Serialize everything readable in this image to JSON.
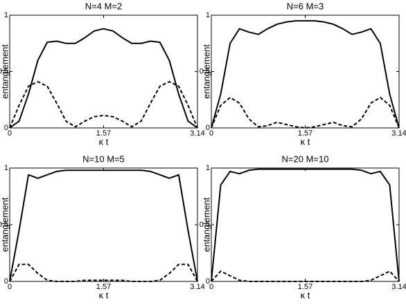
{
  "chart_data": [
    {
      "type": "line",
      "title": "N=4  M=2",
      "xlabel": "κ t",
      "ylabel": "entanglement",
      "x": [
        0,
        0.157,
        0.314,
        0.471,
        0.628,
        0.785,
        0.942,
        1.099,
        1.256,
        1.413,
        1.57,
        1.727,
        1.884,
        2.041,
        2.198,
        2.355,
        2.512,
        2.669,
        2.826,
        2.983,
        3.14
      ],
      "series": [
        {
          "color": "#000000",
          "dash": false,
          "values": [
            0,
            0.06,
            0.3,
            0.6,
            0.76,
            0.77,
            0.75,
            0.75,
            0.8,
            0.86,
            0.88,
            0.86,
            0.8,
            0.75,
            0.75,
            0.77,
            0.76,
            0.6,
            0.3,
            0.06,
            0
          ]
        },
        {
          "color": "#000000",
          "dash": true,
          "values": [
            0,
            0.2,
            0.37,
            0.41,
            0.37,
            0.22,
            0.06,
            0.01,
            0.06,
            0.1,
            0.11,
            0.1,
            0.06,
            0.01,
            0.06,
            0.22,
            0.37,
            0.41,
            0.37,
            0.2,
            0
          ]
        }
      ],
      "xlim": [
        0,
        3.14
      ],
      "xticks": [
        0,
        1.57,
        3.14
      ],
      "ylim": [
        0,
        1
      ],
      "yticks": [
        0,
        0.5,
        1
      ]
    },
    {
      "type": "line",
      "title": "N=6  M=3",
      "xlabel": "κ t",
      "ylabel": "entanglement",
      "x": [
        0,
        0.157,
        0.314,
        0.471,
        0.628,
        0.785,
        0.942,
        1.099,
        1.256,
        1.413,
        1.57,
        1.727,
        1.884,
        2.041,
        2.198,
        2.355,
        2.512,
        2.669,
        2.826,
        2.983,
        3.14
      ],
      "series": [
        {
          "color": "#000000",
          "dash": false,
          "values": [
            0,
            0.3,
            0.75,
            0.88,
            0.85,
            0.83,
            0.88,
            0.92,
            0.94,
            0.95,
            0.95,
            0.95,
            0.94,
            0.92,
            0.88,
            0.83,
            0.85,
            0.88,
            0.75,
            0.3,
            0
          ]
        },
        {
          "color": "#000000",
          "dash": true,
          "values": [
            0,
            0.2,
            0.27,
            0.22,
            0.08,
            0.01,
            0.02,
            0.05,
            0.03,
            0.01,
            0,
            0.01,
            0.03,
            0.05,
            0.02,
            0.01,
            0.08,
            0.22,
            0.27,
            0.2,
            0
          ]
        }
      ],
      "xlim": [
        0,
        3.14
      ],
      "xticks": [
        0,
        1.57,
        3.14
      ],
      "ylim": [
        0,
        1
      ],
      "yticks": [
        0,
        0.5,
        1
      ]
    },
    {
      "type": "line",
      "title": "N=10  M=5",
      "xlabel": "κ t",
      "ylabel": "entanglement",
      "x": [
        0,
        0.157,
        0.314,
        0.471,
        0.628,
        0.785,
        0.942,
        1.099,
        1.256,
        1.413,
        1.57,
        1.727,
        1.884,
        2.041,
        2.198,
        2.355,
        2.512,
        2.669,
        2.826,
        2.983,
        3.14
      ],
      "series": [
        {
          "color": "#000000",
          "dash": false,
          "values": [
            0,
            0.45,
            0.94,
            0.91,
            0.94,
            0.97,
            0.98,
            0.98,
            0.98,
            0.98,
            0.98,
            0.98,
            0.98,
            0.98,
            0.98,
            0.97,
            0.94,
            0.91,
            0.94,
            0.45,
            0
          ]
        },
        {
          "color": "#000000",
          "dash": true,
          "values": [
            0,
            0.15,
            0.15,
            0.07,
            0.01,
            0,
            0,
            0,
            0.01,
            0.01,
            0.01,
            0.01,
            0.01,
            0,
            0,
            0,
            0.01,
            0.07,
            0.15,
            0.15,
            0
          ]
        }
      ],
      "xlim": [
        0,
        3.14
      ],
      "xticks": [
        0,
        1.57,
        3.14
      ],
      "ylim": [
        0,
        1
      ],
      "yticks": [
        0,
        0.5,
        1
      ]
    },
    {
      "type": "line",
      "title": "N=20  M=10",
      "xlabel": "κ t",
      "ylabel": "entanglement",
      "x": [
        0,
        0.157,
        0.314,
        0.471,
        0.628,
        0.785,
        0.942,
        1.099,
        1.256,
        1.413,
        1.57,
        1.727,
        1.884,
        2.041,
        2.198,
        2.355,
        2.512,
        2.669,
        2.826,
        2.983,
        3.14
      ],
      "series": [
        {
          "color": "#000000",
          "dash": false,
          "values": [
            0,
            0.85,
            0.97,
            0.95,
            0.98,
            0.99,
            0.99,
            0.99,
            0.99,
            0.99,
            0.99,
            0.99,
            0.99,
            0.99,
            0.99,
            0.99,
            0.98,
            0.95,
            0.97,
            0.85,
            0
          ]
        },
        {
          "color": "#000000",
          "dash": true,
          "values": [
            0,
            0.09,
            0.05,
            0.01,
            0,
            0,
            0,
            0,
            0,
            0,
            0,
            0,
            0,
            0,
            0,
            0,
            0,
            0.01,
            0.05,
            0.09,
            0
          ]
        }
      ],
      "xlim": [
        0,
        3.14
      ],
      "xticks": [
        0,
        1.57,
        3.14
      ],
      "ylim": [
        0,
        1
      ],
      "yticks": [
        0,
        0.5,
        1
      ]
    }
  ]
}
